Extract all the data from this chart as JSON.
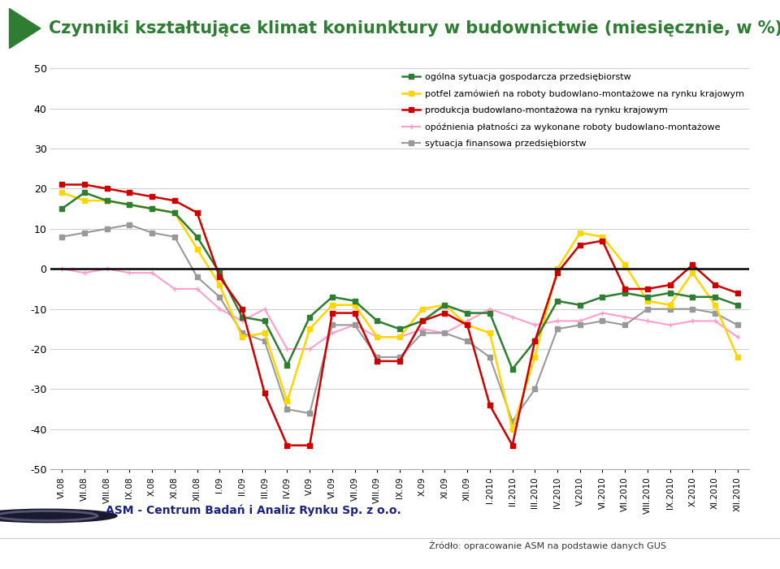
{
  "title": "Czynniki kształtujące klimat koniunktury w budownictwie (miesięcznie, w %)",
  "x_labels": [
    "VI.08",
    "VII.08",
    "VIII.08",
    "IX.08",
    "X.08",
    "XI.08",
    "XII.08",
    "I.09",
    "II.09",
    "III.09",
    "IV.09",
    "V.09",
    "VI.09",
    "VII.09",
    "VIII.09",
    "IX.09",
    "X.09",
    "XI.09",
    "XII.09",
    "I.2010",
    "II.2010",
    "III.2010",
    "IV.2010",
    "V.2010",
    "VI.2010",
    "VII.2010",
    "VIII.2010",
    "IX.2010",
    "X.2010",
    "XI.2010",
    "XII.2010"
  ],
  "series": {
    "ogolna": {
      "label": "ogólna sytuacja gospodarcza przedsiębiorstw",
      "color": "#2e7d32",
      "values": [
        15,
        19,
        17,
        16,
        15,
        14,
        8,
        -1,
        -12,
        -13,
        -24,
        -12,
        -7,
        -8,
        -13,
        -15,
        -13,
        -9,
        -11,
        -11,
        -25,
        -18,
        -8,
        -9,
        -7,
        -6,
        -7,
        -6,
        -7,
        -7,
        -9
      ]
    },
    "portfel": {
      "label": "potfel zamówień na roboty budowlano-montażowe na rynku krajowym",
      "color": "#ffd600",
      "values": [
        19,
        17,
        17,
        16,
        15,
        14,
        5,
        -4,
        -17,
        -16,
        -33,
        -15,
        -9,
        -9,
        -17,
        -17,
        -10,
        -9,
        -14,
        -16,
        -40,
        -22,
        0,
        9,
        8,
        1,
        -8,
        -9,
        -1,
        -9,
        -22
      ]
    },
    "produkcja": {
      "label": "produkcja budowlano-montażowa na rynku krajowym",
      "color": "#cc0000",
      "values": [
        21,
        21,
        20,
        19,
        18,
        17,
        14,
        -2,
        -10,
        -31,
        -44,
        -44,
        -11,
        -11,
        -23,
        -23,
        -13,
        -11,
        -14,
        -34,
        -44,
        -18,
        -1,
        6,
        7,
        -5,
        -5,
        -4,
        1,
        -4,
        -6
      ]
    },
    "opoznienia": {
      "label": "opóźnienia płatności za wykonane roboty budowlano-montażowe",
      "color": "#ff9ecc",
      "values": [
        0,
        -1,
        0,
        -1,
        -1,
        -5,
        -5,
        -10,
        -13,
        -10,
        -20,
        -20,
        -16,
        -14,
        -17,
        -17,
        -15,
        -16,
        -13,
        -10,
        -12,
        -14,
        -13,
        -13,
        -11,
        -12,
        -13,
        -14,
        -13,
        -13,
        -17
      ]
    },
    "sytuacja": {
      "label": "sytuacja finansowa przedsiębiorstw",
      "color": "#999999",
      "values": [
        8,
        9,
        10,
        11,
        9,
        8,
        -2,
        -7,
        -16,
        -18,
        -35,
        -36,
        -14,
        -14,
        -22,
        -22,
        -16,
        -16,
        -18,
        -22,
        -38,
        -30,
        -15,
        -14,
        -13,
        -14,
        -10,
        -10,
        -10,
        -11,
        -14
      ]
    }
  },
  "ylim": [
    -50,
    50
  ],
  "yticks": [
    -50,
    -40,
    -30,
    -20,
    -10,
    0,
    10,
    20,
    30,
    40,
    50
  ],
  "background_color": "#ffffff",
  "title_color": "#2e7d32",
  "title_fontsize": 15,
  "footer_text": "Źródło: opracowanie ASM na podstawie danych GUS",
  "source_label": "ASM - Centrum Badań i Analiz Rynku Sp. z o.o.",
  "legend_labels": {
    "ogolna": "ogólna sytuacja gospodarcza przedsiębiorstw",
    "portfel": "potfel zamówień na roboty budowlano-montażowe na rynku krajowym",
    "produkcja": "produkcja budowlano-montażowa na rynku krajowym",
    "opoznienia": "opóźnienia płatności za wykonane roboty budowlano-montażowe",
    "sytuacja": "sytuacja finansowa przedsiębiorstw"
  }
}
